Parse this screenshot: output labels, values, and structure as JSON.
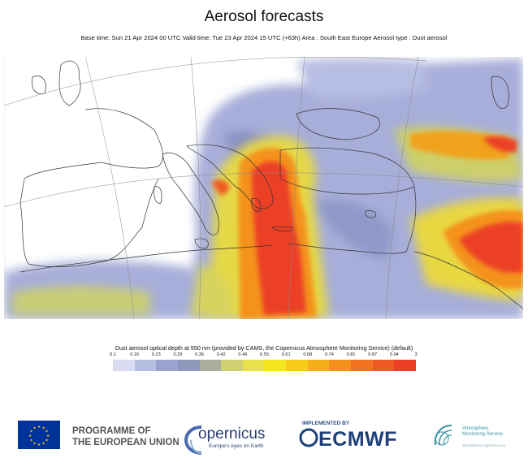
{
  "header": {
    "title": "Aerosol forecasts",
    "subtitle": "Base time: Sun 21 Apr 2024 00 UTC Valid time: Tue 23 Apr 2024 15 UTC (+63h) Area : South East Europe Aerosol type : Dust aerosol"
  },
  "legend": {
    "title": "Dust aerosol optical depth at 550 nm (provided by CAMS, the Copernicus Atmosphere Monitoring Service) (default)",
    "ticks": [
      "0.1",
      "0.16",
      "0.23",
      "0.29",
      "0.36",
      "0.42",
      "0.49",
      "0.55",
      "0.61",
      "0.68",
      "0.74",
      "0.81",
      "0.87",
      "0.94",
      "3"
    ],
    "colors": [
      "#d9dcf0",
      "#b6bedf",
      "#9aa3d0",
      "#8e98ba",
      "#a9ad9c",
      "#cfd071",
      "#e9e04a",
      "#f3e51e",
      "#f7ca1a",
      "#f6ae1a",
      "#f5901a",
      "#f27422",
      "#ef5a24",
      "#ec3e27"
    ]
  },
  "footer": {
    "eu_text_line1": "PROGRAMME OF",
    "eu_text_line2": "THE EUROPEAN UNION",
    "copernicus_word": "opernicus",
    "copernicus_tagline": "Europe's eyes on Earth",
    "implemented_by": "IMPLEMENTED BY",
    "ecmwf": "ECMWF",
    "cams_line1": "Atmosphere",
    "cams_line2": "Monitoring Service",
    "cams_url": "atmosphere.copernicus.eu"
  }
}
